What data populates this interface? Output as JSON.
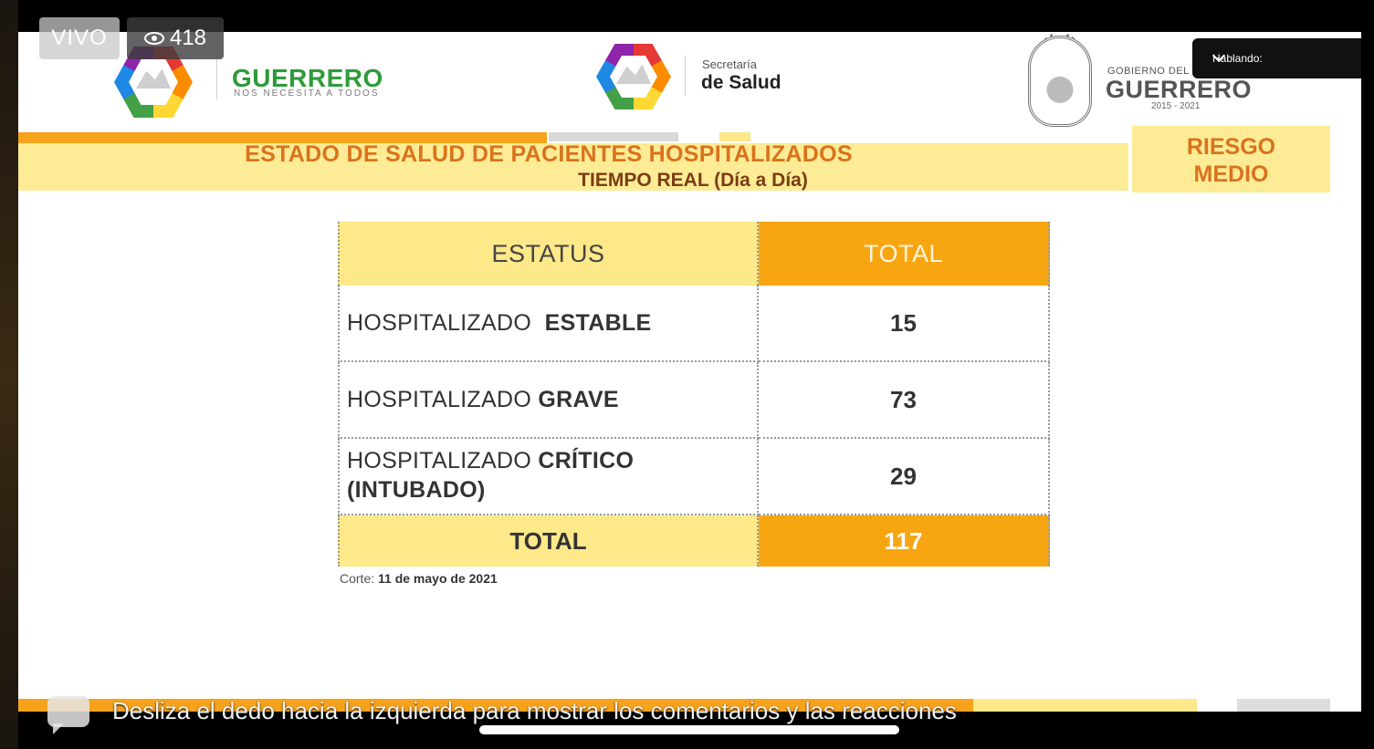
{
  "stream": {
    "live_label": "VIVO",
    "viewer_count": "418",
    "speaking_label": "Hablando:",
    "swipe_hint": "Desliza el dedo hacia la izquierda para mostrar los comentarios y las reacciones"
  },
  "header": {
    "left_logo": {
      "name": "GUERRERO",
      "tagline": "NOS NECESITA A TODOS"
    },
    "center_logo": {
      "line1": "Secretaría",
      "line2": "de Salud"
    },
    "right_logo": {
      "line1": "GOBIERNO DEL",
      "name": "GUERRERO",
      "years": "2015 - 2021"
    }
  },
  "slide": {
    "title": "ESTADO DE SALUD DE PACIENTES HOSPITALIZADOS",
    "subtitle": "TIEMPO REAL (Día a Día)",
    "risk_line1": "RIESGO",
    "risk_line2": "MEDIO"
  },
  "table": {
    "headers": [
      "ESTATUS",
      "TOTAL"
    ],
    "rows": [
      {
        "prefix": "HOSPITALIZADO",
        "status": "ESTABLE",
        "total": "15"
      },
      {
        "prefix": "HOSPITALIZADO",
        "status": "GRAVE",
        "total": "73"
      },
      {
        "prefix": "HOSPITALIZADO",
        "status": "CRÍTICO (INTUBADO)",
        "total": "29"
      }
    ],
    "total_label": "TOTAL",
    "total_value": "117",
    "cut_label": "Corte:",
    "cut_date": "11 de mayo de 2021"
  },
  "colors": {
    "orange": "#f8a512",
    "yellow": "#fde88a",
    "title_orange": "#d9731c",
    "green": "#2e9b3a"
  }
}
